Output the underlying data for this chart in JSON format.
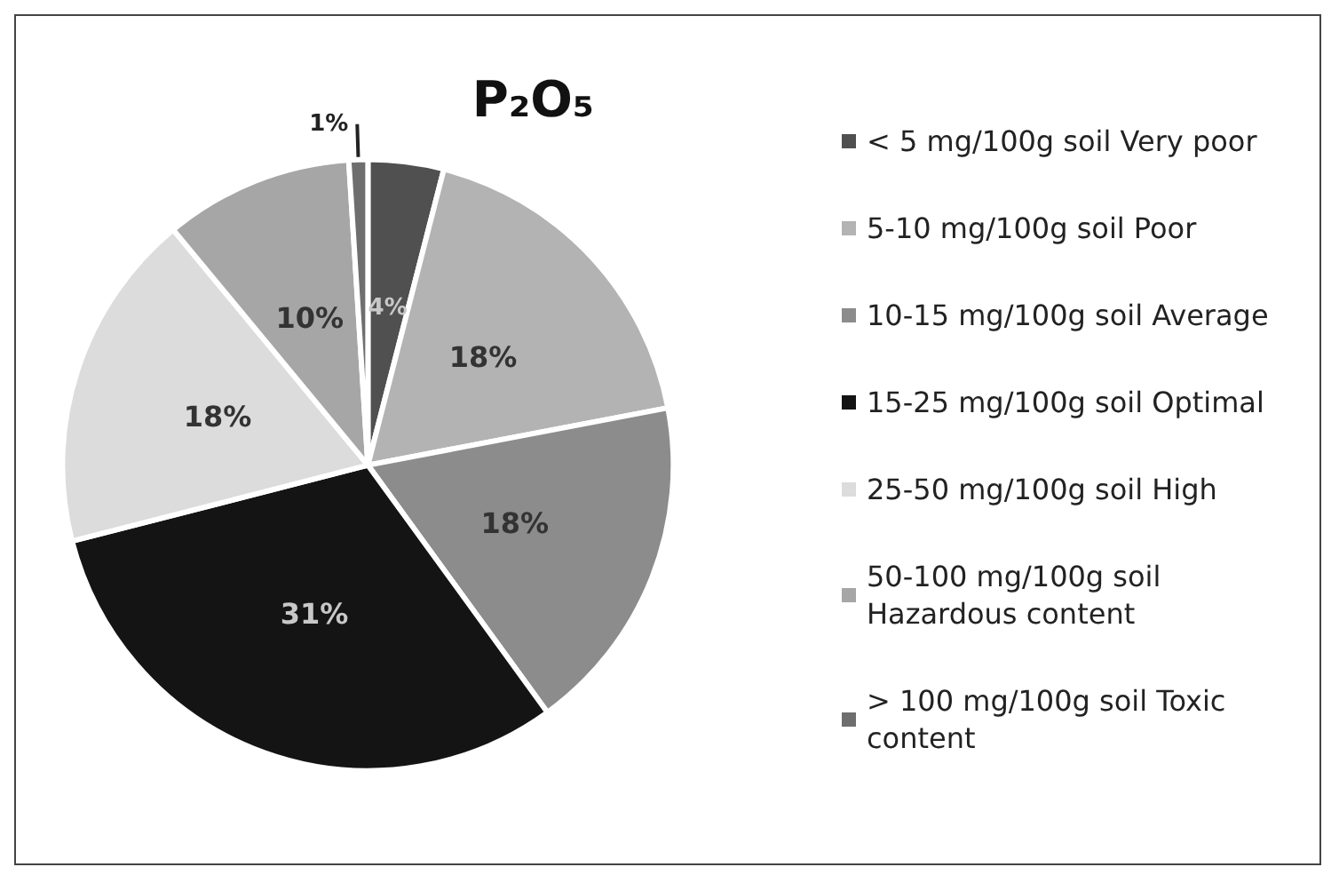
{
  "chart_data": {
    "type": "pie",
    "title": "P₂O₅",
    "categories": [
      "< 5 mg/100g soil Very poor",
      "5-10 mg/100g soil Poor",
      "10-15 mg/100g soil Average",
      "15-25 mg/100g soil Optimal",
      "25-50 mg/100g soil High",
      "50-100 mg/100g soil Hazardous content",
      "> 100 mg/100g soil Toxic content"
    ],
    "values": [
      4,
      18,
      18,
      31,
      18,
      10,
      1
    ],
    "colors": [
      "#505050",
      "#b3b3b3",
      "#8c8c8c",
      "#141414",
      "#dcdcdc",
      "#a6a6a6",
      "#6e6e6e"
    ],
    "value_labels": [
      "4%",
      "18%",
      "18%",
      "31%",
      "18%",
      "10%",
      "1%"
    ],
    "legend": "right"
  }
}
